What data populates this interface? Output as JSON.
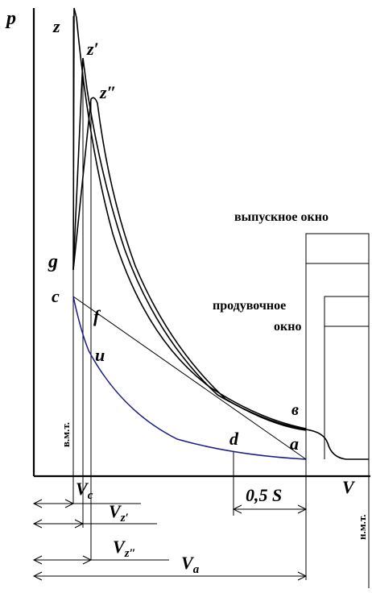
{
  "axes": {
    "y_label": "p",
    "x_label": "V"
  },
  "points": {
    "z": "z",
    "z1": "z′",
    "z2": "z″",
    "g": "g",
    "c": "c",
    "f": "f",
    "u": "u",
    "b": "в",
    "d": "d",
    "a": "a"
  },
  "windows": {
    "exhaust": "выпускное окно",
    "scavenge_line1": "продувочное",
    "scavenge_line2": "окно"
  },
  "dead_centers": {
    "top": "в.м.т.",
    "bottom": "н.м.т."
  },
  "dimensions": {
    "vc": "V",
    "vc_sub": "c",
    "vz1": "V",
    "vz1_sub": "z′",
    "vz2": "V",
    "vz2_sub": "z″",
    "va": "V",
    "va_sub": "a",
    "half_stroke": "0,5 S"
  }
}
